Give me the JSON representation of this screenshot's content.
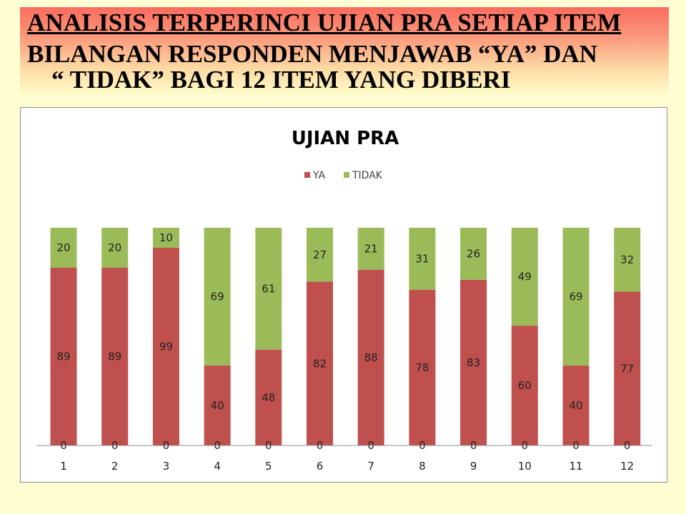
{
  "header": {
    "line1": "ANALISIS TERPERINCI UJIAN PRA SETIAP ITEM",
    "line2": "BILANGAN RESPONDEN MENJAWAB “YA” DAN",
    "line3": "“ TIDAK” BAGI 12 ITEM YANG DIBERI"
  },
  "colors": {
    "ya": "#c0504d",
    "tidak": "#9bbb59",
    "background": "#fffed2"
  },
  "chart_data": {
    "type": "bar",
    "stacked": true,
    "title": "UJIAN PRA",
    "xlabel": "",
    "ylabel": "",
    "categories": [
      "1",
      "2",
      "3",
      "4",
      "5",
      "6",
      "7",
      "8",
      "9",
      "10",
      "11",
      "12"
    ],
    "series": [
      {
        "name": "",
        "values": [
          0,
          0,
          0,
          0,
          0,
          0,
          0,
          0,
          0,
          0,
          0,
          0
        ]
      },
      {
        "name": "YA",
        "values": [
          89,
          89,
          99,
          40,
          48,
          82,
          88,
          78,
          83,
          60,
          40,
          77
        ]
      },
      {
        "name": "TIDAK",
        "values": [
          20,
          20,
          10,
          69,
          61,
          27,
          21,
          31,
          26,
          49,
          69,
          32
        ]
      }
    ],
    "legend_position": "top",
    "grid": false,
    "data_labels": true
  }
}
